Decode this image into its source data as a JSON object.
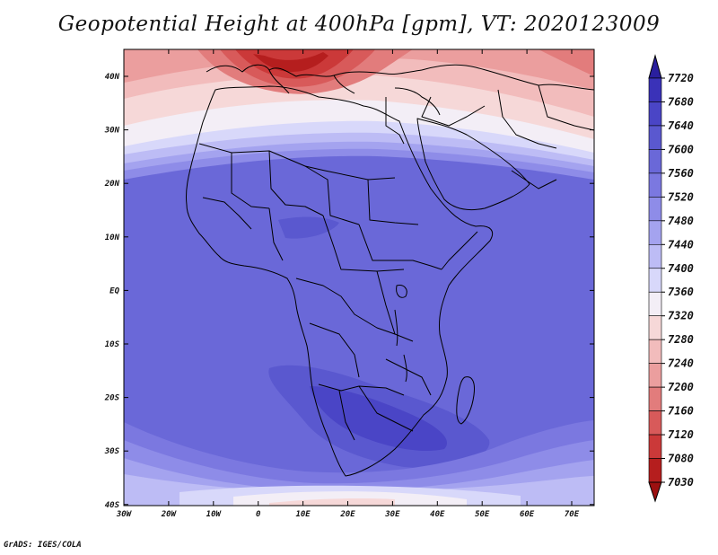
{
  "title": "Geopotential Height at 400hPa [gpm], VT: 2020123009",
  "credit": "GrADS: IGES/COLA",
  "map": {
    "lat_labels": [
      "40N",
      "30N",
      "20N",
      "10N",
      "EQ",
      "10S",
      "20S",
      "30S",
      "40S"
    ],
    "lon_labels": [
      "30W",
      "20W",
      "10W",
      "0",
      "10E",
      "20E",
      "30E",
      "40E",
      "50E",
      "60E",
      "70E"
    ],
    "lon_range": [
      -30,
      75
    ],
    "lat_range": [
      -40,
      45
    ]
  },
  "colorbar": {
    "labels": [
      "7720",
      "7680",
      "7640",
      "7600",
      "7560",
      "7520",
      "7480",
      "7440",
      "7400",
      "7360",
      "7320",
      "7280",
      "7240",
      "7200",
      "7160",
      "7120",
      "7080",
      "7030"
    ],
    "colors": [
      "#2a1f9e",
      "#3a32b8",
      "#4a45c6",
      "#5a58cf",
      "#6a68d8",
      "#7b78e0",
      "#8e8ce8",
      "#a4a3ef",
      "#bdbcf5",
      "#d8d8fa",
      "#f3eef6",
      "#f6d8d8",
      "#f2bcbc",
      "#eb9e9e",
      "#e27c7c",
      "#d85a5a",
      "#cb3939",
      "#b51e1e",
      "#9c1010"
    ]
  }
}
